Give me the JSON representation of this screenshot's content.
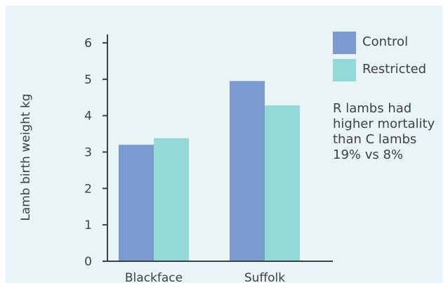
{
  "chart_data": {
    "type": "bar",
    "categories": [
      "Blackface",
      "Suffolk"
    ],
    "series": [
      {
        "name": "Control",
        "values": [
          3.2,
          4.95
        ],
        "color": "#7b9bd0"
      },
      {
        "name": "Restricted",
        "values": [
          3.38,
          4.28
        ],
        "color": "#93d9d8"
      }
    ],
    "ylabel": "Lamb birth weight kg",
    "xlabel": "",
    "ylim": [
      0,
      6
    ],
    "yticks": [
      0,
      1,
      2,
      3,
      4,
      5,
      6
    ],
    "legend_position": "top-right",
    "annotation": [
      "R lambs had",
      "higher mortality",
      "than C lambs",
      "19% vs 8%"
    ],
    "grid": false
  }
}
